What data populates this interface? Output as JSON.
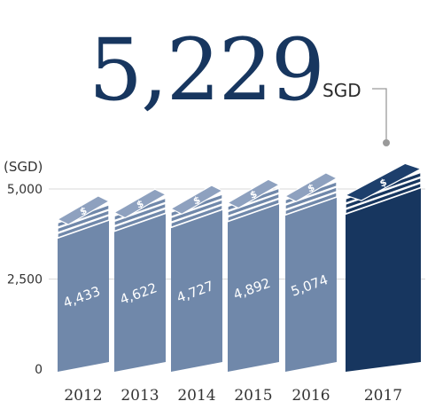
{
  "hero": {
    "value": "5,229",
    "unit": "SGD"
  },
  "chart_data": {
    "type": "bar",
    "ylabel": "(SGD)",
    "ylim": [
      0,
      5000
    ],
    "yticks": [
      {
        "value": 0,
        "label": "0"
      },
      {
        "value": 2500,
        "label": "2,500"
      },
      {
        "value": 5000,
        "label": "5,000"
      }
    ],
    "categories": [
      "2012",
      "2013",
      "2014",
      "2015",
      "2016",
      "2017"
    ],
    "values": [
      4433,
      4622,
      4727,
      4892,
      5074,
      5229
    ],
    "value_labels": [
      "4,433",
      "4,622",
      "4,727",
      "4,892",
      "5,074",
      ""
    ],
    "highlight_index": 5,
    "bar_icon": "$",
    "colors": {
      "bar": "#7088aa",
      "bar_top": "#8ea1bf",
      "highlight": "#17365f",
      "highlight_top": "#1d3f6c",
      "grid": "#d9d9d9",
      "connector": "#9a9a9a"
    }
  }
}
